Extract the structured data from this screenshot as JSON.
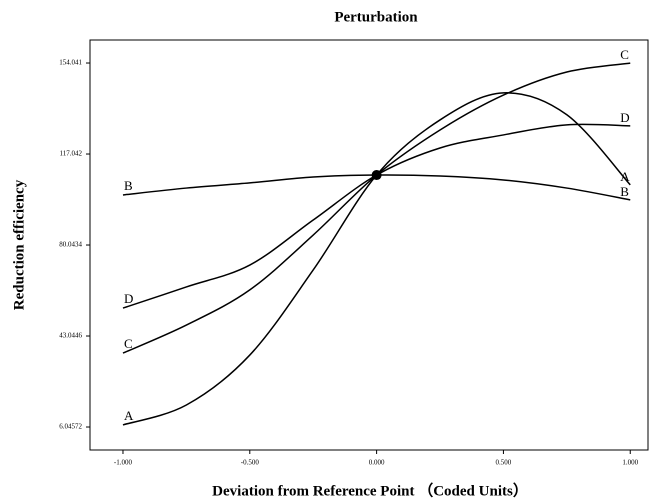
{
  "chart_data": {
    "type": "line",
    "title": "Perturbation",
    "x_label": "Deviation from Reference Point （Coded Units）",
    "y_label": "Reduction efficiency",
    "x": [
      -1,
      -0.75,
      -0.5,
      -0.25,
      0,
      0.25,
      0.5,
      0.75,
      1
    ],
    "series": [
      {
        "name": "A",
        "color": "#000000",
        "values": [
          6.9,
          15,
          35.3,
          69.9,
          108.5,
          130.9,
          141.9,
          133,
          104.5
        ]
      },
      {
        "name": "B",
        "color": "#000000",
        "values": [
          100.4,
          103.2,
          105.3,
          107.7,
          108.5,
          108.1,
          106.5,
          103.2,
          98.4
        ]
      },
      {
        "name": "C",
        "color": "#000000",
        "values": [
          36.1,
          47.5,
          61.8,
          84.1,
          108.5,
          126.8,
          141,
          150.4,
          154
        ]
      },
      {
        "name": "D",
        "color": "#000000",
        "values": [
          54.4,
          63,
          71.9,
          90.2,
          108.5,
          119.5,
          124.8,
          128.9,
          128.5
        ]
      }
    ],
    "xlim": [
      -1.13,
      1.07
    ],
    "ylim": [
      -3.3,
      163.4
    ],
    "xticks": [
      {
        "value": -1,
        "label": "-1.000"
      },
      {
        "value": -0.5,
        "label": "-0.500"
      },
      {
        "value": 0,
        "label": "0.000"
      },
      {
        "value": 0.5,
        "label": "0.500"
      },
      {
        "value": 1,
        "label": "1.000"
      }
    ],
    "yticks": [
      6.04572,
      43.0446,
      80.0434,
      117.042,
      154.041
    ],
    "grid": false
  }
}
